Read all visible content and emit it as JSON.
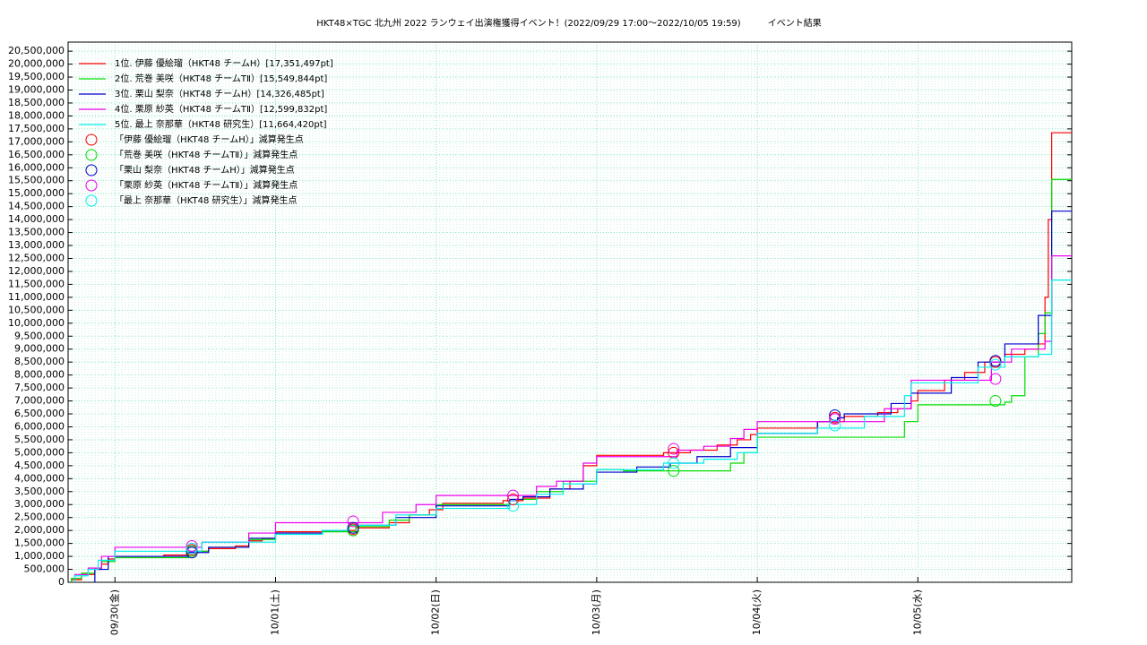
{
  "chart_data": {
    "type": "line",
    "title": "HKT48×TGC 北九州 2022 ランウェイ出演権獲得イベント！(2022/09/29 17:00～2022/10/05 19:59)　　　イベント結果",
    "xlim": [
      0,
      150
    ],
    "xticks": [
      {
        "value": 7,
        "label": "09/30(金)"
      },
      {
        "value": 31,
        "label": "10/01(土)"
      },
      {
        "value": 55,
        "label": "10/02(日)"
      },
      {
        "value": 79,
        "label": "10/03(月)"
      },
      {
        "value": 103,
        "label": "10/04(火)"
      },
      {
        "value": 127,
        "label": "10/05(水)"
      }
    ],
    "ylim": [
      0,
      20850000
    ],
    "yticks": [
      0,
      {
        "value": 500000,
        "label": "500,000"
      },
      {
        "value": 1000000,
        "label": "1,000,000"
      },
      {
        "value": 1500000,
        "label": "1,500,000"
      },
      {
        "value": 2000000,
        "label": "2,000,000"
      },
      {
        "value": 2500000,
        "label": "2,500,000"
      },
      {
        "value": 3000000,
        "label": "3,000,000"
      },
      {
        "value": 3500000,
        "label": "3,500,000"
      },
      {
        "value": 4000000,
        "label": "4,000,000"
      },
      {
        "value": 4500000,
        "label": "4,500,000"
      },
      {
        "value": 5000000,
        "label": "5,000,000"
      },
      {
        "value": 5500000,
        "label": "5,500,000"
      },
      {
        "value": 6000000,
        "label": "6,000,000"
      },
      {
        "value": 6500000,
        "label": "6,500,000"
      },
      {
        "value": 7000000,
        "label": "7,000,000"
      },
      {
        "value": 7500000,
        "label": "7,500,000"
      },
      {
        "value": 8000000,
        "label": "8,000,000"
      },
      {
        "value": 8500000,
        "label": "8,500,000"
      },
      {
        "value": 9000000,
        "label": "9,000,000"
      },
      {
        "value": 9500000,
        "label": "9,500,000"
      },
      {
        "value": 10000000,
        "label": "10,000,000"
      },
      {
        "value": 10500000,
        "label": "10,500,000"
      },
      {
        "value": 11000000,
        "label": "11,000,000"
      },
      {
        "value": 11500000,
        "label": "11,500,000"
      },
      {
        "value": 12000000,
        "label": "12,000,000"
      },
      {
        "value": 12500000,
        "label": "12,500,000"
      },
      {
        "value": 13000000,
        "label": "13,000,000"
      },
      {
        "value": 13500000,
        "label": "13,500,000"
      },
      {
        "value": 14000000,
        "label": "14,000,000"
      },
      {
        "value": 14500000,
        "label": "14,500,000"
      },
      {
        "value": 15000000,
        "label": "15,000,000"
      },
      {
        "value": 15500000,
        "label": "15,500,000"
      },
      {
        "value": 16000000,
        "label": "16,000,000"
      },
      {
        "value": 16500000,
        "label": "16,500,000"
      },
      {
        "value": 17000000,
        "label": "17,000,000"
      },
      {
        "value": 17500000,
        "label": "17,500,000"
      },
      {
        "value": 18000000,
        "label": "18,000,000"
      },
      {
        "value": 18500000,
        "label": "18,500,000"
      },
      {
        "value": 19000000,
        "label": "19,000,000"
      },
      {
        "value": 19500000,
        "label": "19,500,000"
      },
      {
        "value": 20000000,
        "label": "20,000,000"
      },
      {
        "value": 20500000,
        "label": "20,500,000"
      }
    ],
    "grid": true,
    "legend": "upper left",
    "series": [
      {
        "name": "1位. 伊藤 優絵瑠（HKT48 チームH）[17,351,497pt]",
        "color": "#ff0000",
        "style": "step",
        "x": [
          0.5,
          2,
          4,
          5,
          6,
          7,
          14.3,
          18,
          21,
          25,
          27,
          29,
          31,
          38,
          43,
          48,
          51,
          54,
          56,
          65,
          68,
          72,
          75,
          77,
          79,
          89,
          93,
          97,
          100,
          102,
          103,
          112,
          116,
          121,
          124,
          126,
          127,
          131,
          134,
          137,
          140,
          143,
          145,
          146,
          146.5,
          147
        ],
        "values": [
          100000,
          300000,
          500000,
          700000,
          900000,
          1000000,
          1050000,
          1200000,
          1300000,
          1400000,
          1600000,
          1700000,
          1950000,
          2000000,
          2100000,
          2300000,
          2600000,
          2800000,
          3050000,
          3150000,
          3250000,
          3600000,
          3900000,
          4500000,
          4900000,
          5000000,
          5100000,
          5300000,
          5500000,
          5700000,
          5950000,
          6200000,
          6400000,
          6550000,
          6700000,
          7000000,
          7400000,
          7800000,
          8100000,
          8500000,
          8800000,
          9000000,
          9200000,
          11000000,
          14000000,
          17351497
        ]
      },
      {
        "name": "2位. 荒巻 美咲（HKT48 チームTⅡ）[15,549,844pt]",
        "color": "#00dd00",
        "style": "step",
        "x": [
          0.5,
          2,
          4,
          5,
          7,
          18,
          21,
          27,
          31,
          38,
          43,
          48,
          51,
          55,
          66,
          70,
          74,
          79,
          83,
          97,
          99,
          101,
          103,
          122,
          125,
          127,
          136,
          140,
          141,
          142.5,
          143,
          145,
          146,
          147
        ],
        "values": [
          150000,
          350000,
          550000,
          800000,
          950000,
          1200000,
          1350000,
          1650000,
          1900000,
          1950000,
          2150000,
          2400000,
          2600000,
          3000000,
          3200000,
          3500000,
          3900000,
          4350000,
          4300000,
          4300000,
          4600000,
          5000000,
          5600000,
          5600000,
          6200000,
          6850000,
          6850000,
          6950000,
          7200000,
          7200000,
          8700000,
          9600000,
          10400000,
          15549844
        ]
      },
      {
        "name": "3位. 栗山 梨奈（HKT48 チームH）[14,326,485pt]",
        "color": "#0000cc",
        "style": "step",
        "x": [
          4,
          6,
          14,
          18,
          21,
          27,
          31,
          38,
          42,
          49,
          55,
          66,
          68,
          72,
          77,
          79,
          85,
          90,
          94,
          99,
          103,
          112,
          115,
          116,
          123,
          126,
          132,
          136,
          140,
          145,
          147
        ],
        "values": [
          500000,
          1000000,
          1000000,
          1150000,
          1350000,
          1700000,
          1900000,
          2000000,
          2200000,
          2500000,
          2950000,
          3200000,
          3300000,
          3600000,
          3800000,
          4250000,
          4450000,
          4600000,
          4850000,
          5200000,
          5750000,
          6200000,
          6350000,
          6500000,
          6900000,
          7300000,
          7900000,
          8500000,
          9200000,
          10300000,
          14326485
        ]
      },
      {
        "name": "4位. 栗原 紗英（HKT48 チームTⅡ）[12,599,832pt]",
        "color": "#ee00ee",
        "style": "step",
        "x": [
          1,
          3,
          5,
          7,
          18,
          20,
          27,
          31,
          43,
          47,
          52,
          55,
          67,
          70,
          73,
          77,
          79,
          91,
          95,
          99,
          101,
          103,
          116,
          122,
          126,
          136,
          138,
          141,
          146,
          147
        ],
        "values": [
          300000,
          550000,
          1000000,
          1350000,
          1350000,
          1550000,
          1900000,
          2300000,
          2300000,
          2700000,
          3000000,
          3350000,
          3350000,
          3700000,
          3900000,
          4600000,
          4850000,
          5100000,
          5250000,
          5550000,
          5900000,
          6200000,
          6200000,
          6700000,
          7800000,
          7800000,
          8500000,
          9000000,
          9300000,
          12599832
        ]
      },
      {
        "name": "5位. 最上 奈那華（HKT48 研究生）[11,664,420pt]",
        "color": "#00eeee",
        "style": "step",
        "x": [
          1,
          3,
          4.5,
          7,
          20,
          31,
          38,
          42,
          49,
          55,
          66,
          70,
          74,
          79,
          89,
          95,
          100,
          103,
          112,
          119,
          125,
          126,
          136,
          140,
          145,
          147
        ],
        "values": [
          250000,
          500000,
          850000,
          1200000,
          1550000,
          1850000,
          2000000,
          2200000,
          2600000,
          2850000,
          3000000,
          3400000,
          3800000,
          4350000,
          4600000,
          4750000,
          5000000,
          5750000,
          5950000,
          6400000,
          7200000,
          7700000,
          8300000,
          8700000,
          8800000,
          11664420
        ]
      },
      {
        "name": "「伊藤 優絵瑠（HKT48 チームH）」減算発生点",
        "color": "#ff0000",
        "style": "circle",
        "x": [
          18.5,
          42.6,
          66.5,
          90.5,
          114.6,
          138.6
        ],
        "values": [
          1250000,
          2050000,
          3200000,
          5000000,
          6350000,
          8500000
        ]
      },
      {
        "name": "「荒巻 美咲（HKT48 チームTⅡ）」減算発生点",
        "color": "#00dd00",
        "style": "circle",
        "x": [
          18.5,
          42.6,
          90.5,
          138.6
        ],
        "values": [
          1200000,
          2000000,
          4300000,
          7000000
        ]
      },
      {
        "name": "「栗山 梨奈（HKT48 チームH）」減算発生点",
        "color": "#0000cc",
        "style": "circle",
        "x": [
          18.5,
          42.6,
          114.6,
          138.6
        ],
        "values": [
          1150000,
          2100000,
          6450000,
          8550000
        ]
      },
      {
        "name": "「栗原 紗英（HKT48 チームTⅡ）」減算発生点",
        "color": "#ee00ee",
        "style": "circle",
        "x": [
          18.5,
          42.6,
          66.5,
          90.5,
          114.6,
          138.6
        ],
        "values": [
          1400000,
          2350000,
          3350000,
          5150000,
          6300000,
          7850000
        ]
      },
      {
        "name": "「最上 奈那華（HKT48 研究生）」減算発生点",
        "color": "#00eeee",
        "style": "circle",
        "x": [
          18.5,
          66.5,
          90.5,
          114.6,
          138.6
        ],
        "values": [
          1300000,
          2950000,
          4600000,
          6050000,
          8400000
        ]
      }
    ]
  }
}
